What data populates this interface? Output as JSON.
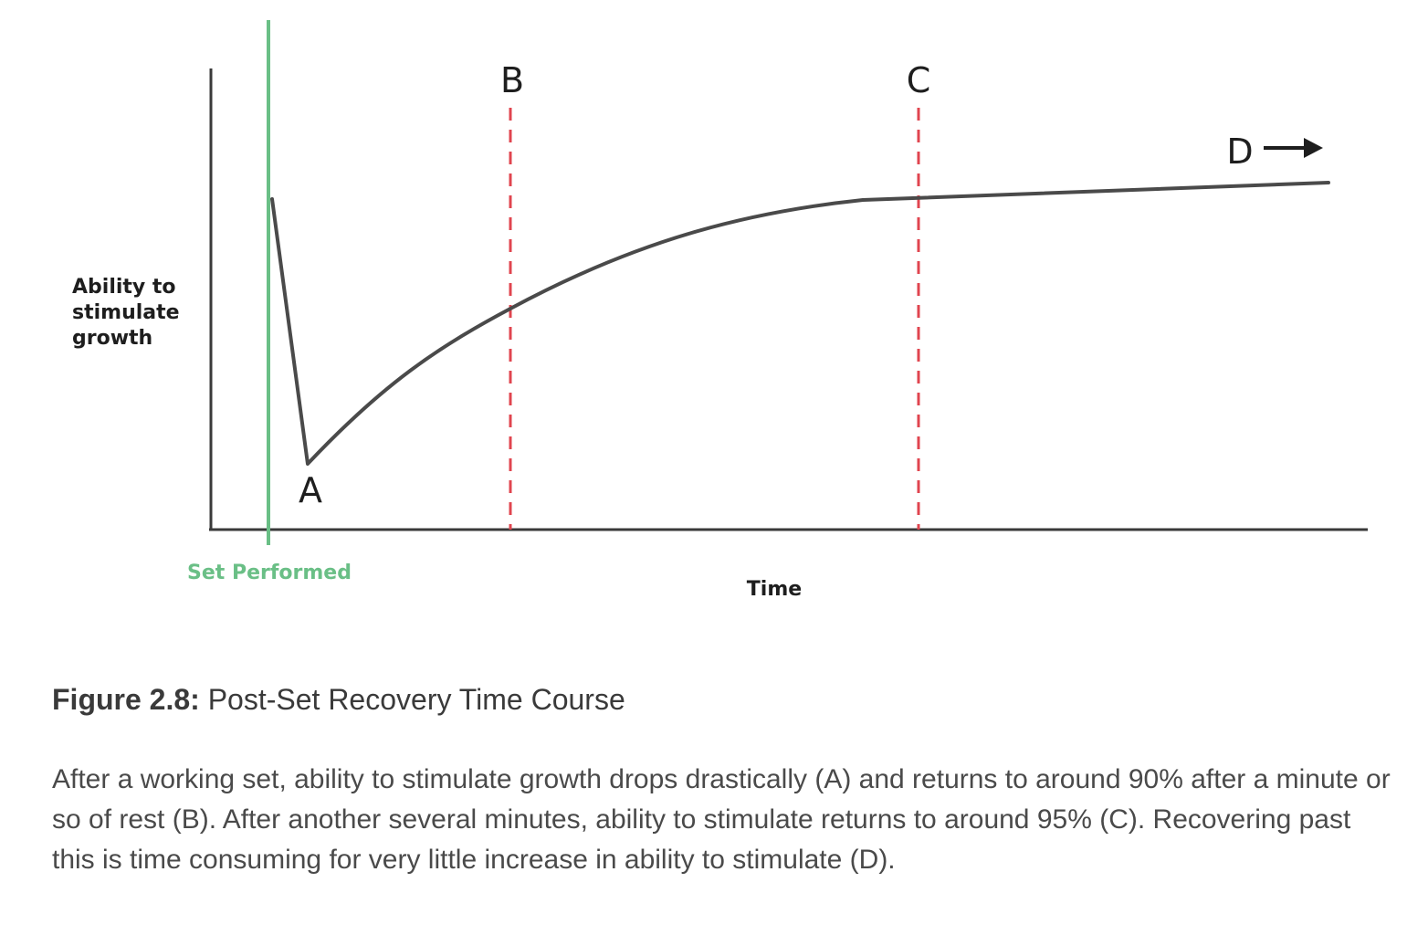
{
  "figure": {
    "y_axis_label_lines": [
      "Ability to",
      "stimulate",
      "growth"
    ],
    "x_axis_label": "Time",
    "set_label": "Set Performed",
    "point_labels": {
      "A": "A",
      "B": "B",
      "C": "C",
      "D": "D"
    },
    "colors": {
      "axis": "#3a3a3a",
      "curve": "#4a4a4a",
      "set_line": "#6abf86",
      "marker_line": "#e0454f",
      "text": "#1e1e1e"
    },
    "icons": [
      "right-arrow-icon"
    ]
  },
  "caption": {
    "figure_number": "Figure 2.8:",
    "title": "Post-Set Recovery Time Course",
    "description": "After a working set, ability to stimulate growth drops drastically (A) and returns to around 90% after a minute or so of rest (B). After another several minutes, ability to stimulate returns to around 95% (C). Recovering past this is time consuming for very little increase in ability to stimulate (D)."
  }
}
